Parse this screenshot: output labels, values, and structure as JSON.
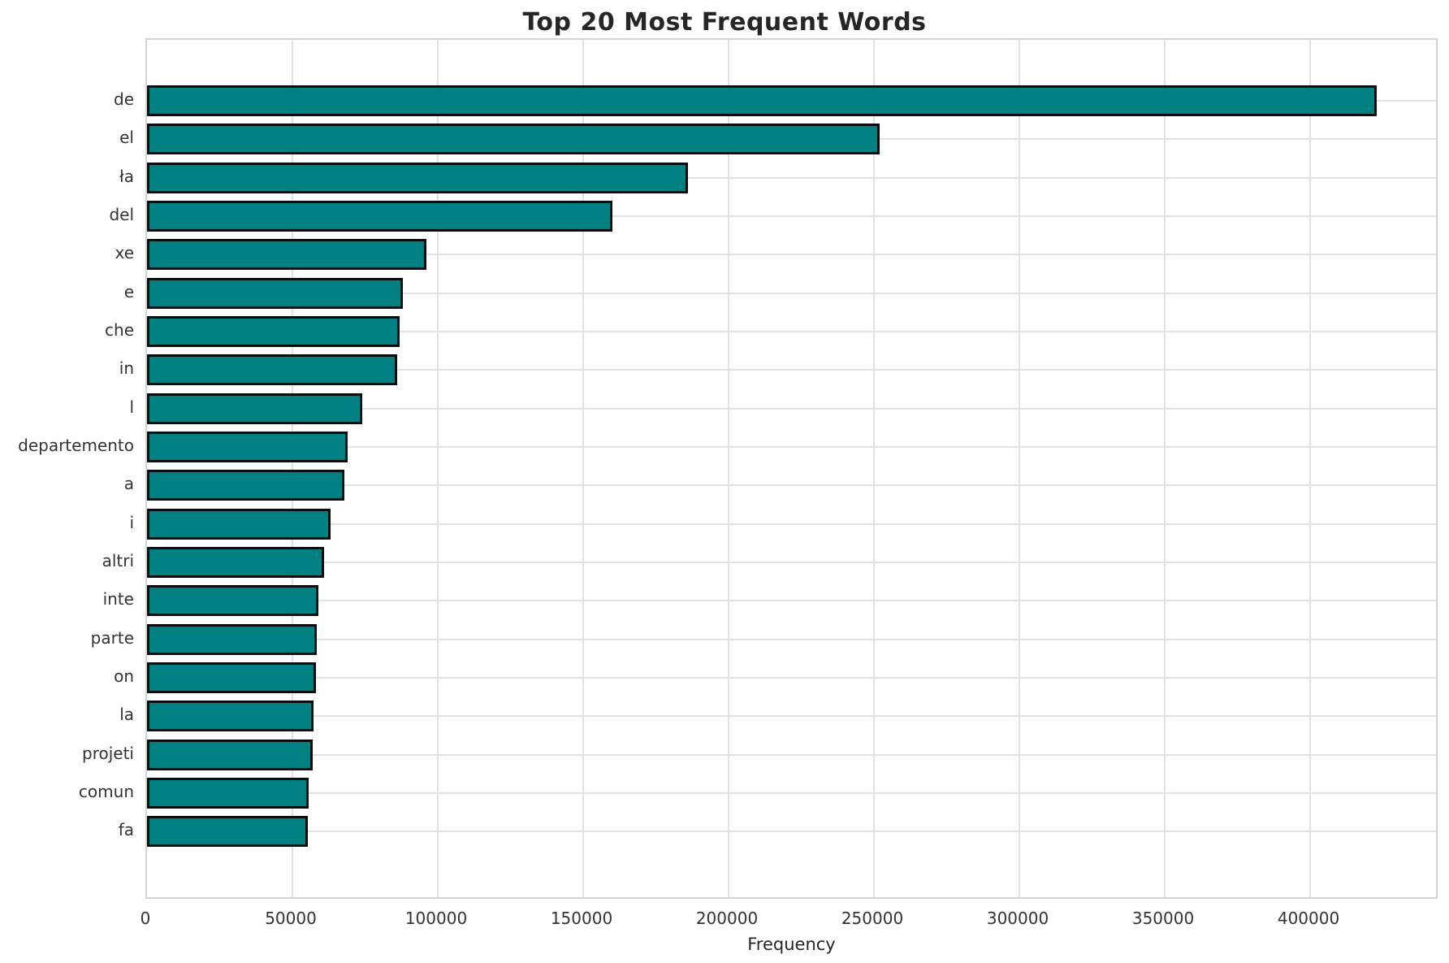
{
  "chart_data": {
    "type": "bar",
    "orientation": "horizontal",
    "title": "Top 20 Most Frequent Words",
    "xlabel": "Frequency",
    "ylabel": "",
    "categories": [
      "de",
      "el",
      "ła",
      "del",
      "xe",
      "e",
      "che",
      "in",
      "l",
      "departemento",
      "a",
      "i",
      "altri",
      "inte",
      "parte",
      "on",
      "la",
      "projeti",
      "comun",
      "fa"
    ],
    "values": [
      423000,
      252000,
      186000,
      160000,
      96000,
      88000,
      87000,
      86000,
      74000,
      69000,
      68000,
      63000,
      61000,
      59000,
      58500,
      58000,
      57200,
      57000,
      55500,
      55300
    ],
    "xlim": [
      0,
      444400
    ],
    "xticks": [
      0,
      50000,
      100000,
      150000,
      200000,
      250000,
      300000,
      350000,
      400000
    ],
    "xtick_labels": [
      "0",
      "50000",
      "100000",
      "150000",
      "200000",
      "250000",
      "300000",
      "350000",
      "400000"
    ],
    "grid": true,
    "legend": "none",
    "bar_color": "#008080",
    "bar_edge_color": "#0d0d0d",
    "grid_color": "#e2e2e2",
    "background_color": "#ffffff",
    "title_color": "#262626",
    "tick_label_color": "#333333"
  }
}
